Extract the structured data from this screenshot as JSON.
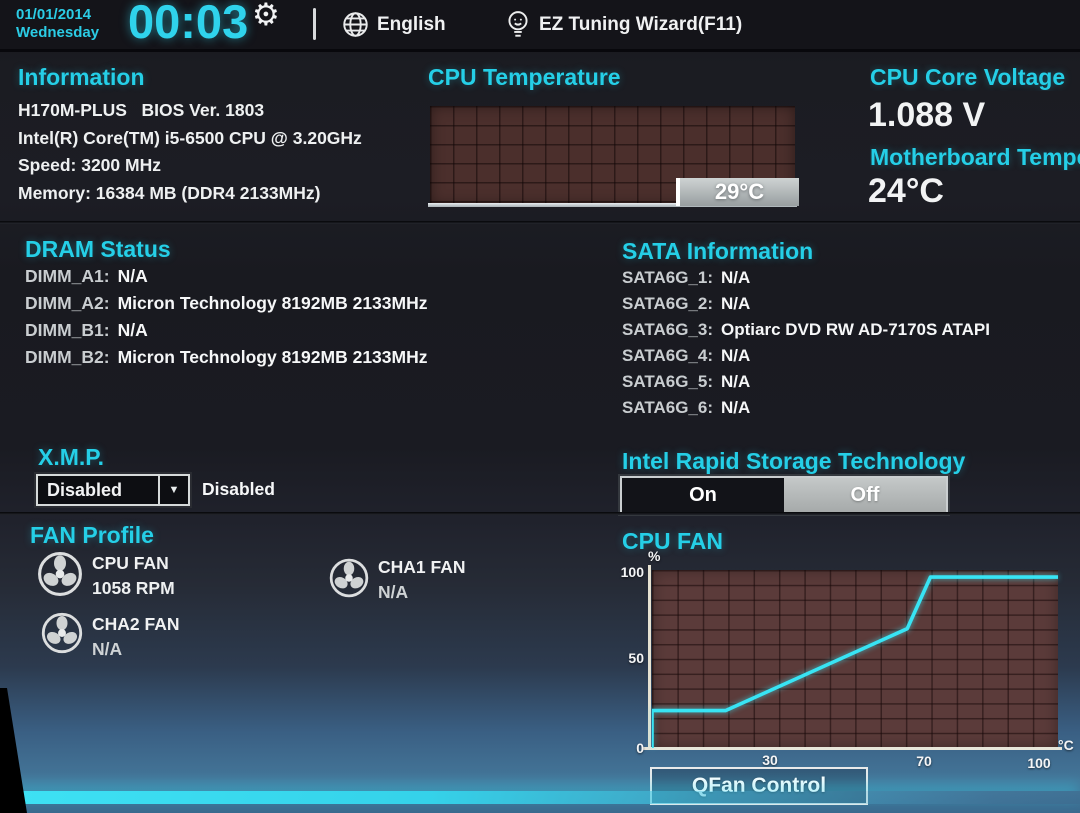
{
  "topbar": {
    "date": "01/01/2014",
    "weekday": "Wednesday",
    "time": "00:03",
    "settings_icon_glyph": "⚙",
    "language_label": "English",
    "wizard_label": "EZ Tuning Wizard(F11)"
  },
  "information": {
    "title": "Information",
    "lines": [
      "H170M-PLUS   BIOS Ver. 1803",
      "Intel(R) Core(TM) i5-6500 CPU @ 3.20GHz",
      "Speed: 3200 MHz",
      "Memory: 16384 MB (DDR4 2133MHz)"
    ]
  },
  "cpu_temperature": {
    "title": "CPU Temperature",
    "value_label": "29°C"
  },
  "voltage_panel": {
    "title": "CPU Core Voltage",
    "value": "1.088 V"
  },
  "mb_temp_panel": {
    "title": "Motherboard Temperature",
    "value": "24°C"
  },
  "dram_status": {
    "title": "DRAM Status",
    "items": [
      {
        "label": "DIMM_A1:",
        "value": "N/A"
      },
      {
        "label": "DIMM_A2:",
        "value": "Micron Technology 8192MB 2133MHz"
      },
      {
        "label": "DIMM_B1:",
        "value": "N/A"
      },
      {
        "label": "DIMM_B2:",
        "value": "Micron Technology 8192MB 2133MHz"
      }
    ]
  },
  "sata_information": {
    "title": "SATA Information",
    "items": [
      {
        "label": "SATA6G_1:",
        "value": "N/A"
      },
      {
        "label": "SATA6G_2:",
        "value": "N/A"
      },
      {
        "label": "SATA6G_3:",
        "value": "Optiarc DVD RW AD-7170S ATAPI"
      },
      {
        "label": "SATA6G_4:",
        "value": "N/A"
      },
      {
        "label": "SATA6G_5:",
        "value": "N/A"
      },
      {
        "label": "SATA6G_6:",
        "value": "N/A"
      }
    ]
  },
  "xmp": {
    "title": "X.M.P.",
    "selected_option": "Disabled",
    "dropdown_arrow_glyph": "▼",
    "status_text": "Disabled"
  },
  "rapid_storage": {
    "title": "Intel Rapid Storage Technology",
    "on_label": "On",
    "off_label": "Off",
    "selected": "Off"
  },
  "fan_profile": {
    "title": "FAN Profile",
    "fans": [
      {
        "name": "CPU FAN",
        "value": "1058 RPM"
      },
      {
        "name": "CHA1 FAN",
        "value": "N/A"
      },
      {
        "name": "CHA2 FAN",
        "value": "N/A"
      }
    ]
  },
  "qfan": {
    "button_label": "QFan Control"
  },
  "chart_data": [
    {
      "id": "cpu-fan-curve",
      "type": "line",
      "title": "CPU FAN",
      "xlabel": "°C",
      "ylabel": "%",
      "xlim": [
        0,
        105
      ],
      "ylim": [
        0,
        100
      ],
      "x_ticks": [
        0,
        30,
        70,
        100
      ],
      "y_ticks": [
        0,
        50,
        100
      ],
      "grid": true,
      "legend": false,
      "series": [
        {
          "name": "cpu-fan-duty",
          "color": "#38e4f4",
          "points": [
            [
              0,
              0
            ],
            [
              0,
              21
            ],
            [
              19,
              21
            ],
            [
              66,
              67
            ],
            [
              72,
              96
            ],
            [
              105,
              96
            ]
          ]
        }
      ]
    },
    {
      "id": "cpu-temperature-history",
      "type": "area",
      "title": "CPU Temperature",
      "current_value": 29,
      "unit": "°C",
      "value_label": "29°C",
      "series": []
    }
  ]
}
